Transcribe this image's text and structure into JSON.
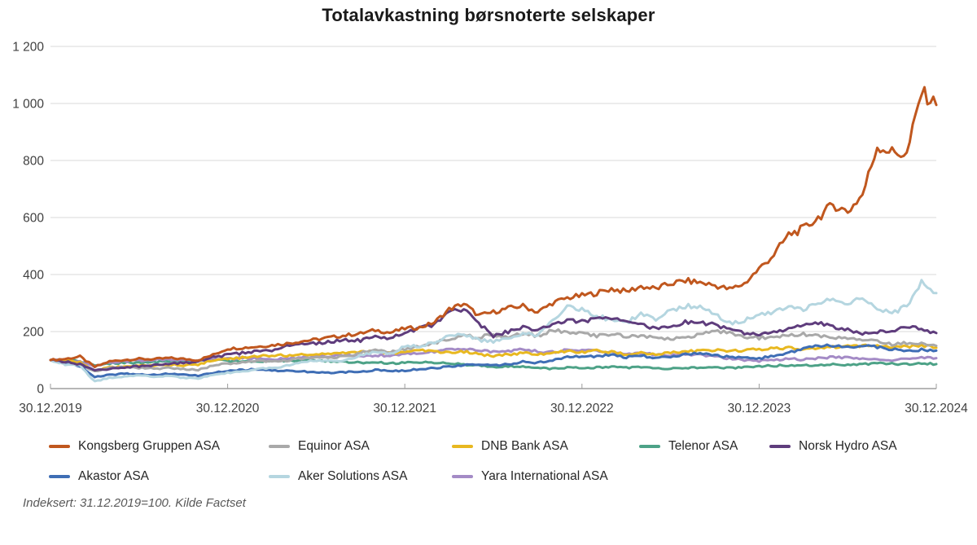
{
  "chart_data": {
    "type": "line",
    "title": "Totalavkastning børsnoterte selskaper",
    "footnote": "Indeksert: 31.12.2019=100. Kilde Factset",
    "x_tick_labels": [
      "30.12.2019",
      "30.12.2020",
      "30.12.2021",
      "30.12.2022",
      "30.12.2023",
      "30.12.2024"
    ],
    "y_tick_values": [
      0,
      200,
      400,
      600,
      800,
      1000,
      1200
    ],
    "y_tick_labels": [
      "0",
      "200",
      "400",
      "600",
      "800",
      "1 000",
      "1 200"
    ],
    "ylim": [
      0,
      1200
    ],
    "x_range": [
      "30.12.2019",
      "30.12.2024"
    ],
    "x_resolution": "monthly",
    "grid": "horizontal",
    "legend_position": "bottom",
    "axis_color": "#9d9d9d",
    "grid_color": "#d9d9d9",
    "label_color": "#404040",
    "series": [
      {
        "name": "Kongsberg Gruppen ASA",
        "color": "#c0571e",
        "values": [
          100,
          104,
          112,
          76,
          95,
          101,
          104,
          103,
          107,
          104,
          100,
          118,
          140,
          143,
          147,
          152,
          158,
          166,
          172,
          180,
          187,
          193,
          205,
          196,
          211,
          214,
          232,
          278,
          298,
          256,
          268,
          282,
          290,
          268,
          300,
          318,
          326,
          335,
          350,
          340,
          358,
          350,
          368,
          378,
          372,
          362,
          348,
          368,
          420,
          470,
          540,
          560,
          600,
          645,
          620,
          680,
          850,
          830,
          820,
          1040,
          995
        ]
      },
      {
        "name": "Equinor ASA",
        "color": "#a9a9a9",
        "values": [
          100,
          90,
          82,
          62,
          72,
          75,
          72,
          70,
          72,
          68,
          65,
          80,
          88,
          92,
          98,
          95,
          98,
          105,
          110,
          108,
          112,
          125,
          135,
          128,
          138,
          150,
          160,
          175,
          185,
          180,
          190,
          178,
          195,
          185,
          205,
          198,
          192,
          185,
          192,
          182,
          186,
          176,
          172,
          182,
          188,
          202,
          196,
          182,
          178,
          182,
          186,
          190,
          185,
          180,
          176,
          170,
          165,
          155,
          160,
          158,
          150
        ]
      },
      {
        "name": "DNB Bank ASA",
        "color": "#e8b820",
        "values": [
          100,
          98,
          92,
          62,
          74,
          78,
          82,
          80,
          85,
          82,
          85,
          100,
          104,
          108,
          112,
          118,
          116,
          120,
          122,
          120,
          125,
          128,
          130,
          124,
          129,
          135,
          130,
          125,
          130,
          120,
          115,
          120,
          125,
          118,
          125,
          132,
          128,
          132,
          128,
          120,
          125,
          122,
          125,
          130,
          132,
          135,
          130,
          135,
          138,
          140,
          142,
          138,
          142,
          145,
          148,
          150,
          148,
          145,
          148,
          152,
          143
        ]
      },
      {
        "name": "Telenor ASA",
        "color": "#4da287",
        "values": [
          100,
          100,
          95,
          82,
          88,
          92,
          90,
          93,
          95,
          97,
          95,
          100,
          97,
          95,
          96,
          98,
          97,
          100,
          98,
          96,
          94,
          90,
          92,
          88,
          90,
          92,
          90,
          88,
          85,
          80,
          75,
          78,
          76,
          72,
          70,
          73,
          72,
          74,
          76,
          73,
          75,
          72,
          70,
          72,
          74,
          73,
          72,
          75,
          78,
          80,
          82,
          81,
          83,
          84,
          82,
          85,
          88,
          87,
          86,
          88,
          86
        ]
      },
      {
        "name": "Norsk Hydro ASA",
        "color": "#5f3d7d",
        "values": [
          100,
          95,
          85,
          62,
          70,
          75,
          78,
          82,
          88,
          90,
          95,
          110,
          118,
          125,
          132,
          135,
          148,
          160,
          158,
          165,
          170,
          168,
          185,
          175,
          200,
          210,
          225,
          270,
          280,
          230,
          185,
          200,
          215,
          205,
          220,
          240,
          235,
          245,
          250,
          230,
          225,
          210,
          215,
          235,
          230,
          225,
          205,
          195,
          186,
          200,
          210,
          220,
          230,
          215,
          205,
          195,
          200,
          205,
          215,
          210,
          195
        ]
      },
      {
        "name": "Akastor ASA",
        "color": "#3f6eb5",
        "values": [
          100,
          90,
          80,
          40,
          48,
          52,
          50,
          48,
          52,
          50,
          45,
          55,
          63,
          65,
          68,
          64,
          62,
          60,
          58,
          56,
          58,
          60,
          65,
          62,
          63,
          68,
          72,
          78,
          82,
          85,
          80,
          85,
          95,
          90,
          100,
          110,
          114,
          112,
          118,
          110,
          115,
          108,
          112,
          120,
          125,
          118,
          110,
          108,
          106,
          115,
          125,
          140,
          150,
          152,
          146,
          150,
          145,
          138,
          132,
          136,
          133
        ]
      },
      {
        "name": "Aker Solutions ASA",
        "color": "#b5d6e0",
        "values": [
          100,
          85,
          80,
          25,
          38,
          42,
          45,
          42,
          44,
          38,
          35,
          48,
          55,
          60,
          68,
          72,
          80,
          90,
          100,
          95,
          100,
          115,
          130,
          120,
          148,
          150,
          160,
          185,
          190,
          170,
          165,
          175,
          195,
          185,
          240,
          285,
          277,
          255,
          240,
          230,
          262,
          245,
          272,
          290,
          283,
          260,
          230,
          240,
          258,
          270,
          290,
          280,
          300,
          310,
          300,
          315,
          280,
          263,
          290,
          375,
          335
        ]
      },
      {
        "name": "Yara International ASA",
        "color": "#a48bc6",
        "values": [
          100,
          98,
          95,
          78,
          90,
          95,
          98,
          100,
          102,
          100,
          98,
          105,
          104,
          108,
          105,
          102,
          106,
          110,
          112,
          115,
          118,
          112,
          118,
          115,
          122,
          125,
          130,
          140,
          138,
          135,
          128,
          132,
          138,
          130,
          128,
          135,
          134,
          132,
          128,
          122,
          125,
          118,
          115,
          120,
          118,
          112,
          105,
          100,
          97,
          100,
          104,
          102,
          106,
          110,
          108,
          105,
          102,
          100,
          104,
          108,
          107
        ]
      }
    ]
  }
}
